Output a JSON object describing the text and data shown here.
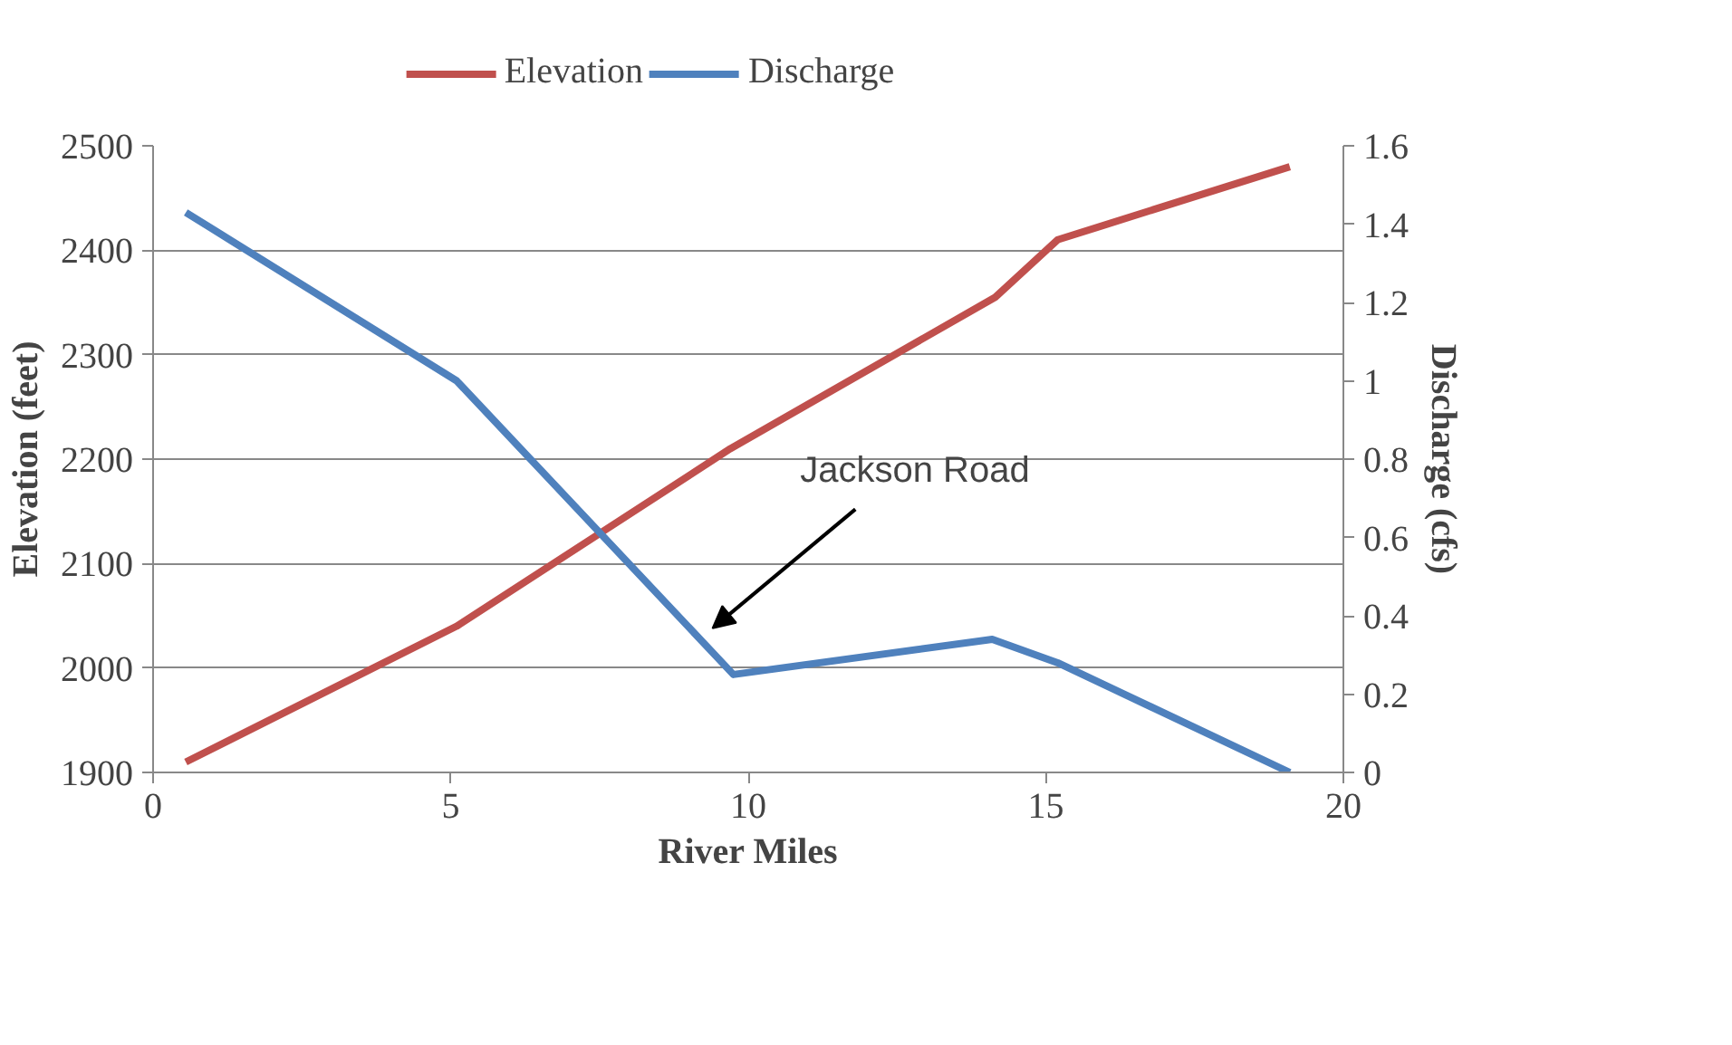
{
  "chart_data": {
    "type": "line",
    "xlabel": "River Miles",
    "ylabel": "Elevation (feet)",
    "y2label": "Discharge (cfs)",
    "xlim": [
      0,
      20
    ],
    "xticks": [
      0,
      5,
      10,
      15,
      20
    ],
    "ylim": [
      1900,
      2500
    ],
    "yticks": [
      1900,
      2000,
      2100,
      2200,
      2300,
      2400,
      2500
    ],
    "y2lim": [
      0,
      1.6
    ],
    "y2ticks": [
      0,
      0.2,
      0.4,
      0.6,
      0.8,
      1,
      1.2,
      1.4,
      1.6
    ],
    "grid": "y",
    "legend": "top",
    "marker": "none",
    "line_style": "solid",
    "series": [
      {
        "name": "Elevation",
        "color": "#c0504d",
        "x": [
          0.55,
          5.1,
          9.7,
          14.15,
          15.2,
          19.1
        ],
        "values": [
          1910,
          2040,
          2210,
          2355,
          2410,
          2480
        ]
      },
      {
        "name": "Discharge",
        "color": "#4f81bd",
        "axis": "y2",
        "x": [
          0.55,
          5.1,
          9.75,
          14.1,
          15.2,
          19.1
        ],
        "values": [
          1.43,
          1.0,
          0.25,
          0.34,
          0.28,
          0
        ]
      }
    ],
    "annotations": [
      "Jackson Road"
    ]
  }
}
